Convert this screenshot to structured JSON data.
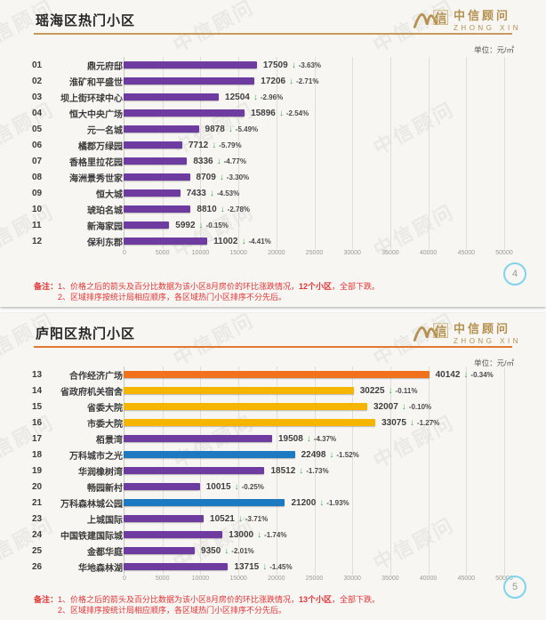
{
  "watermark": "中信顾问",
  "logo": {
    "cn": "中信顾问",
    "en": "ZHONG XIN",
    "mark": "信"
  },
  "icons": {
    "down_arrow": "↓"
  },
  "colors": {
    "purple": "#6e3ba1",
    "gold": "#f6b600",
    "orange": "#f2711c",
    "blue": "#1e7ac0",
    "arrow": "#3db04b",
    "note": "#e23434",
    "tick": "#9b9b95",
    "grid": "#e0ded8",
    "page_ring": "#7fd4ec",
    "logo_gold": "#b5904e"
  },
  "slides": [
    {
      "title": "瑶海区热门小区",
      "accent": "#c59a5c",
      "unit_label": "单位：元/㎡",
      "page": "4",
      "note_label": "备注：",
      "note1_prefix": "1、价格之后的箭头及百分比数据为该小区8月房价的环比涨跌情况，",
      "note1_bold": "12个小区",
      "note1_suffix": "，全部下跌。",
      "note2": "2、区域排序按统计局相应顺序，各区域热门小区排序不分先后。"
    },
    {
      "title": "庐阳区热门小区",
      "accent": "#e2772f",
      "unit_label": "单位：元/㎡",
      "page": "5",
      "note_label": "备注：",
      "note1_prefix": "1、价格之后的箭头及百分比数据为该小区8月房价的环比涨跌情况，",
      "note1_bold": "13个小区",
      "note1_suffix": "，全部下跌。",
      "note2": "2、区域排序按统计局相应顺序，各区域热门小区排序不分先后。"
    }
  ],
  "chart_data": [
    {
      "type": "bar",
      "orientation": "horizontal",
      "title": "瑶海区热门小区",
      "unit": "元/㎡",
      "xlim": [
        0,
        50000
      ],
      "x_ticks": [
        0,
        5000,
        10000,
        15000,
        20000,
        25000,
        30000,
        35000,
        40000,
        45000,
        50000
      ],
      "grid": true,
      "legend": false,
      "rows": [
        {
          "no": "01",
          "name": "鼎元府邸",
          "value": 17509,
          "trend": "down",
          "pct": "-3.63%",
          "color": "purple"
        },
        {
          "no": "02",
          "name": "淮矿和平盛世",
          "value": 17206,
          "trend": "down",
          "pct": "-2.71%",
          "color": "purple"
        },
        {
          "no": "03",
          "name": "坝上街环球中心",
          "value": 12504,
          "trend": "down",
          "pct": "-2.96%",
          "color": "purple"
        },
        {
          "no": "04",
          "name": "恒大中央广场",
          "value": 15896,
          "trend": "down",
          "pct": "-2.54%",
          "color": "purple"
        },
        {
          "no": "05",
          "name": "元一名城",
          "value": 9878,
          "trend": "down",
          "pct": "-5.49%",
          "color": "purple"
        },
        {
          "no": "06",
          "name": "橘郡万绿园",
          "value": 7712,
          "trend": "down",
          "pct": "-5.79%",
          "color": "purple"
        },
        {
          "no": "07",
          "name": "香格里拉花园",
          "value": 8336,
          "trend": "down",
          "pct": "-4.77%",
          "color": "purple"
        },
        {
          "no": "08",
          "name": "海洲景秀世家",
          "value": 8709,
          "trend": "down",
          "pct": "-3.30%",
          "color": "purple"
        },
        {
          "no": "09",
          "name": "恒大城",
          "value": 7433,
          "trend": "down",
          "pct": "-4.53%",
          "color": "purple"
        },
        {
          "no": "10",
          "name": "琥珀名城",
          "value": 8810,
          "trend": "down",
          "pct": "-2.78%",
          "color": "purple"
        },
        {
          "no": "11",
          "name": "新海家园",
          "value": 5992,
          "trend": "down",
          "pct": "-0.15%",
          "color": "purple"
        },
        {
          "no": "12",
          "name": "保利东郡",
          "value": 11002,
          "trend": "down",
          "pct": "-4.41%",
          "color": "purple"
        }
      ]
    },
    {
      "type": "bar",
      "orientation": "horizontal",
      "title": "庐阳区热门小区",
      "unit": "元/㎡",
      "xlim": [
        0,
        50000
      ],
      "x_ticks": [
        0,
        5000,
        10000,
        15000,
        20000,
        25000,
        30000,
        35000,
        40000,
        45000,
        50000
      ],
      "grid": true,
      "legend": false,
      "rows": [
        {
          "no": "13",
          "name": "合作经济广场",
          "value": 40142,
          "trend": "down",
          "pct": "-0.34%",
          "color": "orange"
        },
        {
          "no": "14",
          "name": "省政府机关宿舍",
          "value": 30225,
          "trend": "down",
          "pct": "-0.11%",
          "color": "gold"
        },
        {
          "no": "15",
          "name": "省委大院",
          "value": 32007,
          "trend": "down",
          "pct": "-0.10%",
          "color": "gold"
        },
        {
          "no": "16",
          "name": "市委大院",
          "value": 33075,
          "trend": "down",
          "pct": "-1.27%",
          "color": "gold"
        },
        {
          "no": "17",
          "name": "栢景湾",
          "value": 19508,
          "trend": "down",
          "pct": "-4.37%",
          "color": "purple"
        },
        {
          "no": "18",
          "name": "万科城市之光",
          "value": 22498,
          "trend": "down",
          "pct": "-1.52%",
          "color": "blue"
        },
        {
          "no": "19",
          "name": "华润橡树湾",
          "value": 18512,
          "trend": "down",
          "pct": "-1.73%",
          "color": "purple"
        },
        {
          "no": "20",
          "name": "畅园新村",
          "value": 10015,
          "trend": "down",
          "pct": "-0.25%",
          "color": "purple"
        },
        {
          "no": "21",
          "name": "万科森林城公园",
          "value": 21200,
          "trend": "down",
          "pct": "-1.93%",
          "color": "blue"
        },
        {
          "no": "23",
          "name": "上城国际",
          "value": 10521,
          "trend": "down",
          "pct": "-3.71%",
          "color": "purple"
        },
        {
          "no": "24",
          "name": "中国铁建国际城",
          "value": 13000,
          "trend": "down",
          "pct": "-1.74%",
          "color": "purple"
        },
        {
          "no": "25",
          "name": "金都华庭",
          "value": 9350,
          "trend": "down",
          "pct": "-2.01%",
          "color": "purple"
        },
        {
          "no": "26",
          "name": "华地森林湖",
          "value": 13715,
          "trend": "down",
          "pct": "-1.45%",
          "color": "purple"
        }
      ]
    }
  ]
}
